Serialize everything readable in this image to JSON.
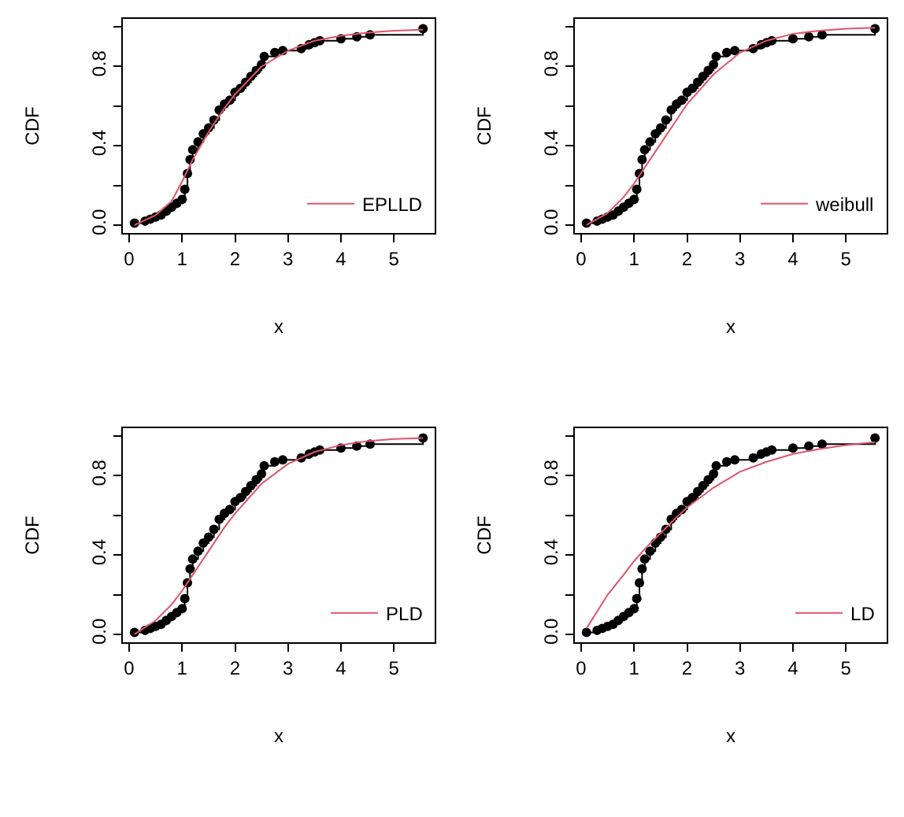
{
  "chart_data": [
    {
      "type": "line",
      "xlabel": "x",
      "ylabel": "CDF",
      "xlim": [
        -0.12,
        5.77
      ],
      "ylim": [
        -0.04,
        1.04
      ],
      "xticks": [
        0,
        1,
        2,
        3,
        4,
        5
      ],
      "yticks": [
        {
          "value": 0,
          "label": "0.0"
        },
        {
          "value": 0.2,
          "label": null
        },
        {
          "value": 0.4,
          "label": "0.4"
        },
        {
          "value": 0.6,
          "label": null
        },
        {
          "value": 0.8,
          "label": "0.8"
        },
        {
          "value": 1,
          "label": null
        }
      ],
      "grid": false,
      "legend": "bottom right",
      "series": [
        {
          "type": "step",
          "color": "#000000",
          "marker": "circle",
          "x": [
            0.1,
            0.3,
            0.4,
            0.5,
            0.6,
            0.7,
            0.8,
            0.9,
            1.0,
            1.05,
            1.1,
            1.15,
            1.2,
            1.3,
            1.4,
            1.5,
            1.6,
            1.7,
            1.8,
            1.9,
            2.0,
            2.1,
            2.2,
            2.3,
            2.4,
            2.5,
            2.55,
            2.75,
            2.9,
            3.25,
            3.4,
            3.5,
            3.6,
            4.0,
            4.3,
            4.55,
            5.55
          ],
          "values": [
            0.01,
            0.02,
            0.03,
            0.04,
            0.05,
            0.07,
            0.09,
            0.11,
            0.13,
            0.18,
            0.26,
            0.33,
            0.38,
            0.42,
            0.46,
            0.49,
            0.53,
            0.58,
            0.61,
            0.63,
            0.67,
            0.69,
            0.72,
            0.75,
            0.78,
            0.81,
            0.85,
            0.87,
            0.88,
            0.89,
            0.91,
            0.92,
            0.93,
            0.94,
            0.95,
            0.96,
            0.99
          ]
        },
        {
          "name": "EPLLD",
          "color": "#df536b",
          "marker": "none",
          "x": [
            0.1,
            0.5,
            0.8,
            1.0,
            1.2,
            1.5,
            1.8,
            2.0,
            2.5,
            3.0,
            3.5,
            4.0,
            4.5,
            5.0,
            5.55
          ],
          "values": [
            0.0,
            0.05,
            0.12,
            0.22,
            0.33,
            0.47,
            0.59,
            0.66,
            0.8,
            0.88,
            0.93,
            0.955,
            0.97,
            0.98,
            0.985
          ]
        }
      ]
    },
    {
      "type": "line",
      "xlabel": "x",
      "ylabel": "CDF",
      "xlim": [
        -0.12,
        5.77
      ],
      "ylim": [
        -0.04,
        1.04
      ],
      "xticks": [
        0,
        1,
        2,
        3,
        4,
        5
      ],
      "yticks": [
        {
          "value": 0,
          "label": "0.0"
        },
        {
          "value": 0.2,
          "label": null
        },
        {
          "value": 0.4,
          "label": "0.4"
        },
        {
          "value": 0.6,
          "label": null
        },
        {
          "value": 0.8,
          "label": "0.8"
        },
        {
          "value": 1,
          "label": null
        }
      ],
      "grid": false,
      "legend": "bottom right",
      "series": [
        {
          "type": "step",
          "color": "#000000",
          "marker": "circle",
          "x": [
            0.1,
            0.3,
            0.4,
            0.5,
            0.6,
            0.7,
            0.8,
            0.9,
            1.0,
            1.05,
            1.1,
            1.15,
            1.2,
            1.3,
            1.4,
            1.5,
            1.6,
            1.7,
            1.8,
            1.9,
            2.0,
            2.1,
            2.2,
            2.3,
            2.4,
            2.5,
            2.55,
            2.75,
            2.9,
            3.25,
            3.4,
            3.5,
            3.6,
            4.0,
            4.3,
            4.55,
            5.55
          ],
          "values": [
            0.01,
            0.02,
            0.03,
            0.04,
            0.05,
            0.07,
            0.09,
            0.11,
            0.13,
            0.18,
            0.26,
            0.33,
            0.38,
            0.42,
            0.46,
            0.49,
            0.53,
            0.58,
            0.61,
            0.63,
            0.67,
            0.69,
            0.72,
            0.75,
            0.78,
            0.81,
            0.85,
            0.87,
            0.88,
            0.89,
            0.91,
            0.92,
            0.93,
            0.94,
            0.95,
            0.96,
            0.99
          ]
        },
        {
          "name": "weibull",
          "color": "#df536b",
          "marker": "none",
          "x": [
            0.1,
            0.5,
            0.8,
            1.0,
            1.2,
            1.5,
            1.8,
            2.0,
            2.5,
            3.0,
            3.5,
            4.0,
            4.5,
            5.0,
            5.55
          ],
          "values": [
            0.0,
            0.06,
            0.14,
            0.21,
            0.29,
            0.41,
            0.53,
            0.61,
            0.76,
            0.87,
            0.93,
            0.965,
            0.98,
            0.99,
            0.995
          ]
        }
      ]
    },
    {
      "type": "line",
      "xlabel": "x",
      "ylabel": "CDF",
      "xlim": [
        -0.12,
        5.77
      ],
      "ylim": [
        -0.04,
        1.04
      ],
      "xticks": [
        0,
        1,
        2,
        3,
        4,
        5
      ],
      "yticks": [
        {
          "value": 0,
          "label": "0.0"
        },
        {
          "value": 0.2,
          "label": null
        },
        {
          "value": 0.4,
          "label": "0.4"
        },
        {
          "value": 0.6,
          "label": null
        },
        {
          "value": 0.8,
          "label": "0.8"
        },
        {
          "value": 1,
          "label": null
        }
      ],
      "grid": false,
      "legend": "bottom right",
      "series": [
        {
          "type": "step",
          "color": "#000000",
          "marker": "circle",
          "x": [
            0.1,
            0.3,
            0.4,
            0.5,
            0.6,
            0.7,
            0.8,
            0.9,
            1.0,
            1.05,
            1.1,
            1.15,
            1.2,
            1.3,
            1.4,
            1.5,
            1.6,
            1.7,
            1.8,
            1.9,
            2.0,
            2.1,
            2.2,
            2.3,
            2.4,
            2.5,
            2.55,
            2.75,
            2.9,
            3.25,
            3.4,
            3.5,
            3.6,
            4.0,
            4.3,
            4.55,
            5.55
          ],
          "values": [
            0.01,
            0.02,
            0.03,
            0.04,
            0.05,
            0.07,
            0.09,
            0.11,
            0.13,
            0.18,
            0.26,
            0.33,
            0.38,
            0.42,
            0.46,
            0.49,
            0.53,
            0.58,
            0.61,
            0.63,
            0.67,
            0.69,
            0.72,
            0.75,
            0.78,
            0.81,
            0.85,
            0.87,
            0.88,
            0.89,
            0.91,
            0.92,
            0.93,
            0.94,
            0.95,
            0.96,
            0.99
          ]
        },
        {
          "name": "PLD",
          "color": "#df536b",
          "marker": "none",
          "x": [
            0.1,
            0.5,
            0.8,
            1.0,
            1.2,
            1.5,
            1.8,
            2.0,
            2.5,
            3.0,
            3.5,
            4.0,
            4.5,
            5.0,
            5.55
          ],
          "values": [
            0.0,
            0.07,
            0.15,
            0.22,
            0.3,
            0.42,
            0.54,
            0.61,
            0.76,
            0.86,
            0.92,
            0.955,
            0.975,
            0.985,
            0.99
          ]
        }
      ]
    },
    {
      "type": "line",
      "xlabel": "x",
      "ylabel": "CDF",
      "xlim": [
        -0.12,
        5.77
      ],
      "ylim": [
        -0.04,
        1.04
      ],
      "xticks": [
        0,
        1,
        2,
        3,
        4,
        5
      ],
      "yticks": [
        {
          "value": 0,
          "label": "0.0"
        },
        {
          "value": 0.2,
          "label": null
        },
        {
          "value": 0.4,
          "label": "0.4"
        },
        {
          "value": 0.6,
          "label": null
        },
        {
          "value": 0.8,
          "label": "0.8"
        },
        {
          "value": 1,
          "label": null
        }
      ],
      "grid": false,
      "legend": "bottom right",
      "series": [
        {
          "type": "step",
          "color": "#000000",
          "marker": "circle",
          "x": [
            0.1,
            0.3,
            0.4,
            0.5,
            0.6,
            0.7,
            0.8,
            0.9,
            1.0,
            1.05,
            1.1,
            1.15,
            1.2,
            1.3,
            1.4,
            1.5,
            1.6,
            1.7,
            1.8,
            1.9,
            2.0,
            2.1,
            2.2,
            2.3,
            2.4,
            2.5,
            2.55,
            2.75,
            2.9,
            3.25,
            3.4,
            3.5,
            3.6,
            4.0,
            4.3,
            4.55,
            5.55
          ],
          "values": [
            0.01,
            0.02,
            0.03,
            0.04,
            0.05,
            0.07,
            0.09,
            0.11,
            0.13,
            0.18,
            0.26,
            0.33,
            0.38,
            0.42,
            0.46,
            0.49,
            0.53,
            0.58,
            0.61,
            0.63,
            0.67,
            0.69,
            0.72,
            0.75,
            0.78,
            0.81,
            0.85,
            0.87,
            0.88,
            0.89,
            0.91,
            0.92,
            0.93,
            0.94,
            0.95,
            0.96,
            0.99
          ]
        },
        {
          "name": "LD",
          "color": "#df536b",
          "marker": "none",
          "x": [
            0.1,
            0.5,
            0.8,
            1.0,
            1.2,
            1.5,
            1.8,
            2.0,
            2.5,
            3.0,
            3.5,
            4.0,
            4.5,
            5.0,
            5.55
          ],
          "values": [
            0.03,
            0.2,
            0.3,
            0.37,
            0.43,
            0.51,
            0.59,
            0.64,
            0.74,
            0.82,
            0.87,
            0.91,
            0.935,
            0.955,
            0.97
          ]
        }
      ]
    }
  ]
}
